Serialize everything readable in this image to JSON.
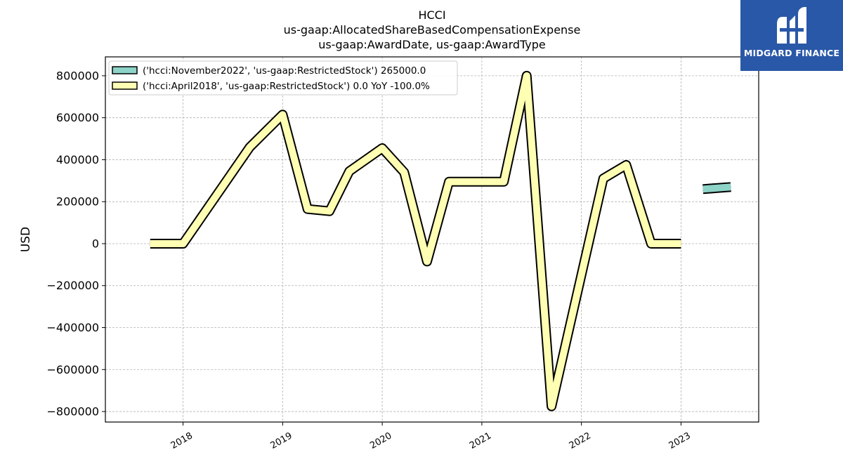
{
  "chart_data": {
    "type": "line",
    "title": [
      "HCCI",
      "us-gaap:AllocatedShareBasedCompensationExpense",
      "us-gaap:AwardDate, us-gaap:AwardType"
    ],
    "xlabel": "",
    "ylabel": "USD",
    "xlim": [
      2017.22,
      2023.78
    ],
    "ylim": [
      -850000,
      890000
    ],
    "yticks": [
      -800000,
      -600000,
      -400000,
      -200000,
      0,
      200000,
      400000,
      600000,
      800000
    ],
    "ytick_labels": [
      "−800000",
      "−600000",
      "−400000",
      "−200000",
      "0",
      "200000",
      "400000",
      "600000",
      "800000"
    ],
    "xticks": [
      2018,
      2019,
      2020,
      2021,
      2022,
      2023
    ],
    "xtick_labels": [
      "2018",
      "2019",
      "2020",
      "2021",
      "2022",
      "2023"
    ],
    "grid": true,
    "legend_position": "upper-left",
    "series": [
      {
        "name": "('hcci:November2022', 'us-gaap:RestrictedStock') 265000.0",
        "color": "#8dd3c7",
        "x": [
          2023.22,
          2023.5
        ],
        "y": [
          260000,
          270000
        ]
      },
      {
        "name": "('hcci:April2018', 'us-gaap:RestrictedStock') 0.0 YoY -100.0%",
        "color": "#ffffb3",
        "x": [
          2017.67,
          2018.0,
          2018.67,
          2019.0,
          2019.25,
          2019.47,
          2019.67,
          2020.0,
          2020.22,
          2020.45,
          2020.67,
          2021.22,
          2021.45,
          2021.7,
          2022.22,
          2022.45,
          2022.7,
          2023.0
        ],
        "y": [
          0,
          0,
          460000,
          615000,
          165000,
          155000,
          345000,
          455000,
          340000,
          -85000,
          295000,
          295000,
          800000,
          -775000,
          310000,
          375000,
          0,
          0
        ]
      }
    ]
  },
  "logo": {
    "text": "MIDGARD FINANCE",
    "color": "#2a58a8"
  }
}
